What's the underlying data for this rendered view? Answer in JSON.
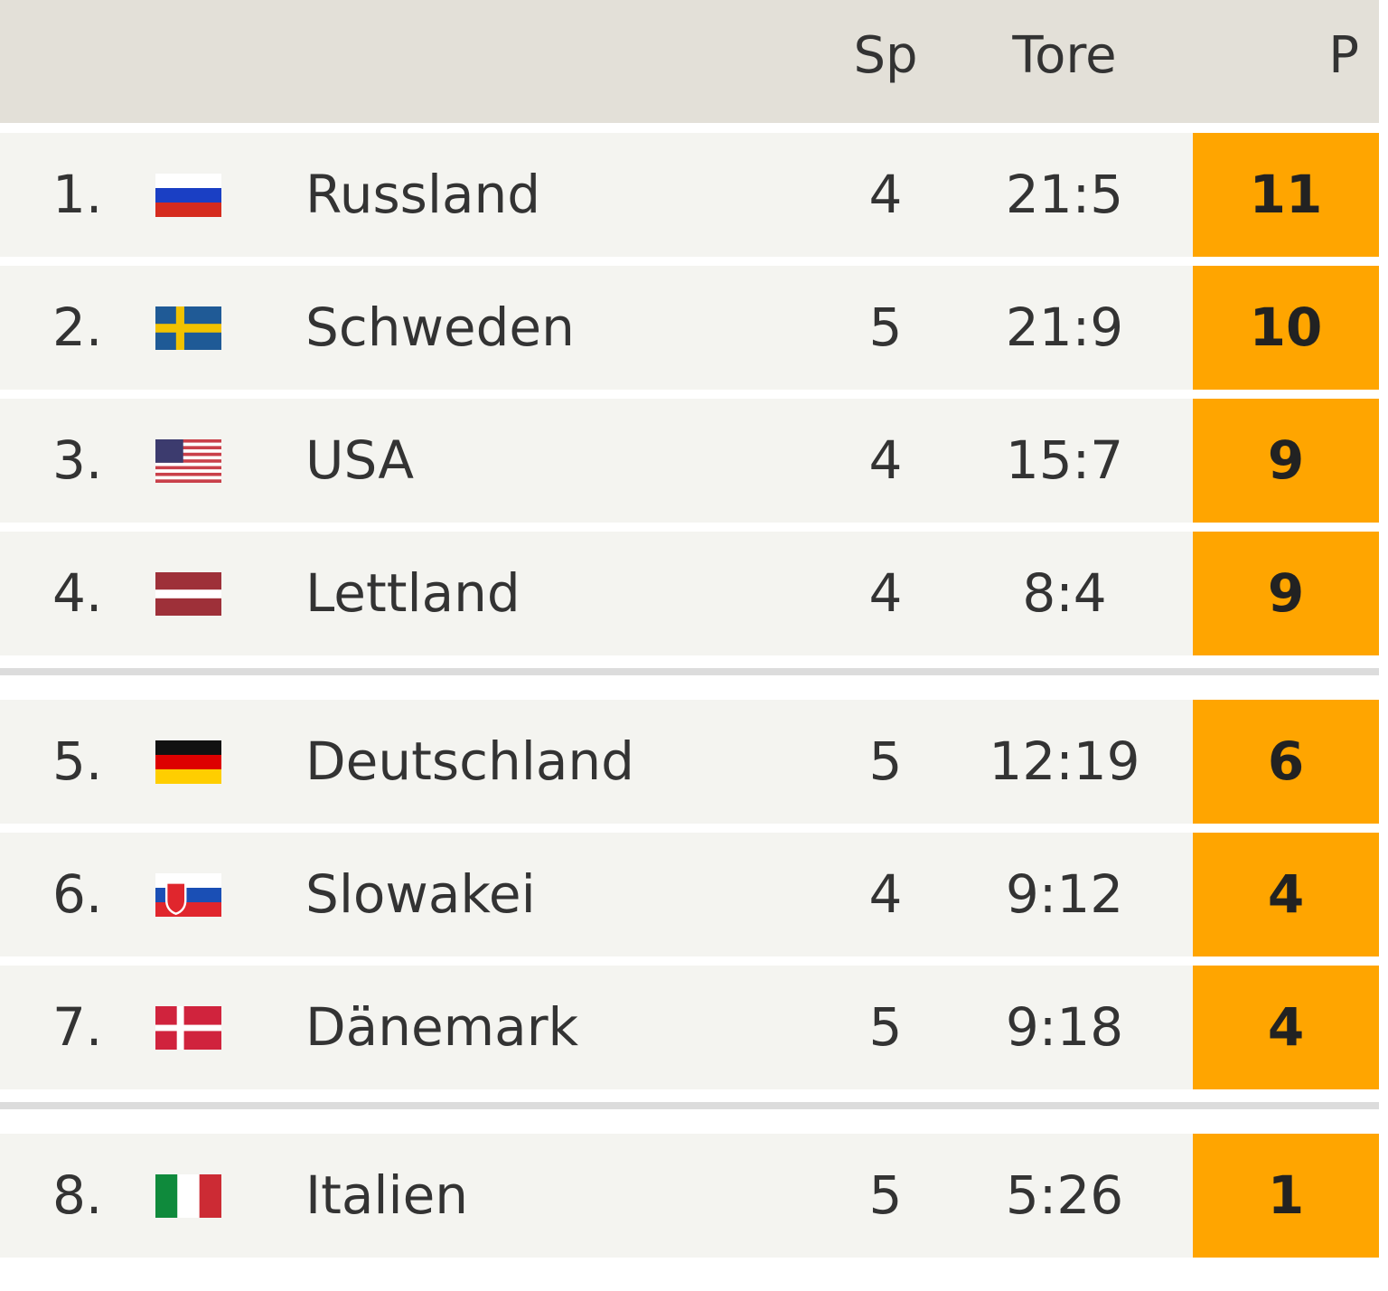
{
  "table": {
    "header": [
      "Sp",
      "Tore",
      "P"
    ],
    "groups": [
      [
        {
          "rank": "1.",
          "team": "Russland",
          "sp": "4",
          "tore": "21:5",
          "p": "11"
        },
        {
          "rank": "2.",
          "team": "Schweden",
          "sp": "5",
          "tore": "21:9",
          "p": "10"
        },
        {
          "rank": "3.",
          "team": "USA",
          "sp": "4",
          "tore": "15:7",
          "p": "9"
        },
        {
          "rank": "4.",
          "team": "Lettland",
          "sp": "4",
          "tore": "8:4",
          "p": "9"
        }
      ],
      [
        {
          "rank": "5.",
          "team": "Deutschland",
          "sp": "5",
          "tore": "12:19",
          "p": "6"
        },
        {
          "rank": "6.",
          "team": "Slowakei",
          "sp": "4",
          "tore": "9:12",
          "p": "4"
        },
        {
          "rank": "7.",
          "team": "Dänemark",
          "sp": "5",
          "tore": "9:18",
          "p": "4"
        }
      ],
      [
        {
          "rank": "8.",
          "team": "Italien",
          "sp": "5",
          "tore": "5:26",
          "p": "1"
        }
      ]
    ]
  }
}
